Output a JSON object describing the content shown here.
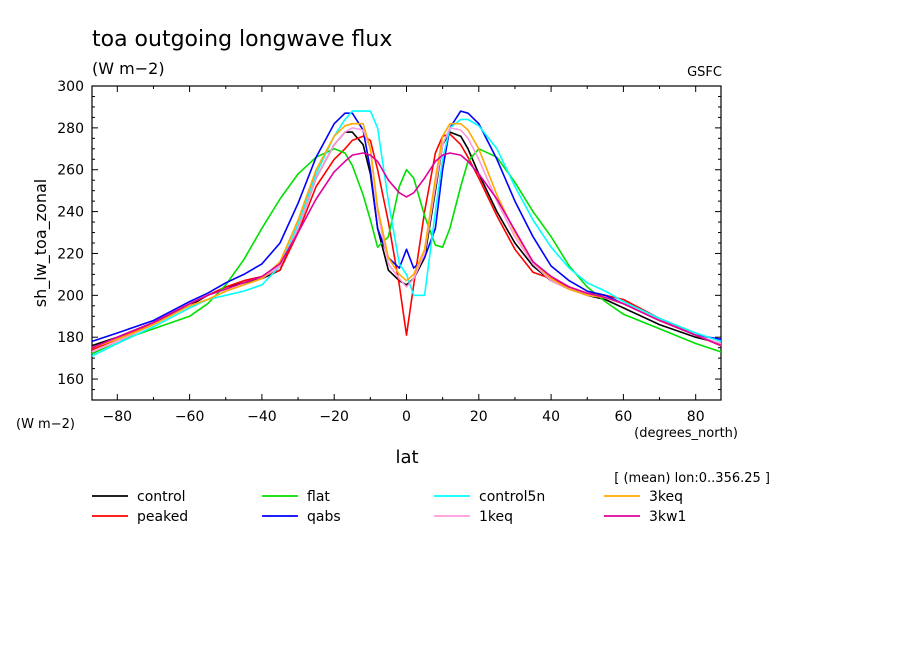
{
  "chart_data": {
    "type": "line",
    "title": "toa outgoing longwave flux",
    "units": "(W m−2)",
    "source": "GSFC",
    "ylabel": "sh_lw_toa_zonal",
    "yunits": "(W m−2)",
    "xlabel": "lat",
    "xunits": "(degrees_north)",
    "annotation": "[ (mean) lon:0..356.25 ]",
    "xlim": [
      -87,
      87
    ],
    "ylim": [
      150,
      300
    ],
    "xticks": [
      -80,
      -60,
      -40,
      -20,
      0,
      20,
      40,
      60,
      80
    ],
    "yticks": [
      160,
      180,
      200,
      220,
      240,
      260,
      280,
      300
    ],
    "x": [
      -87,
      -80,
      -70,
      -60,
      -55,
      -50,
      -45,
      -40,
      -35,
      -30,
      -25,
      -20,
      -17,
      -15,
      -12,
      -10,
      -8,
      -5,
      -2,
      0,
      2,
      5,
      8,
      10,
      12,
      15,
      17,
      20,
      25,
      30,
      35,
      40,
      45,
      50,
      55,
      60,
      70,
      80,
      87
    ],
    "series": [
      {
        "name": "control",
        "color": "#000000",
        "values": [
          176,
          180,
          187,
          195,
          200,
          204,
          206,
          208,
          212,
          232,
          256,
          272,
          278,
          278,
          272,
          258,
          232,
          212,
          207,
          205,
          208,
          218,
          250,
          272,
          278,
          276,
          270,
          258,
          240,
          225,
          214,
          207,
          203,
          200,
          198,
          194,
          186,
          180,
          177
        ]
      },
      {
        "name": "peaked",
        "color": "#ff0000",
        "values": [
          174,
          179,
          187,
          196,
          200,
          204,
          207,
          209,
          212,
          230,
          252,
          265,
          270,
          274,
          276,
          274,
          260,
          235,
          205,
          181,
          205,
          240,
          268,
          276,
          277,
          272,
          266,
          256,
          238,
          222,
          211,
          208,
          204,
          201,
          200,
          198,
          189,
          181,
          176
        ]
      },
      {
        "name": "flat",
        "color": "#00e000",
        "values": [
          172,
          178,
          184,
          190,
          196,
          205,
          217,
          232,
          246,
          258,
          266,
          270,
          268,
          262,
          248,
          236,
          223,
          228,
          252,
          260,
          256,
          238,
          224,
          223,
          232,
          252,
          264,
          270,
          266,
          254,
          240,
          228,
          214,
          204,
          197,
          191,
          184,
          177,
          173
        ]
      },
      {
        "name": "qabs",
        "color": "#0000ff",
        "values": [
          178,
          182,
          188,
          197,
          201,
          206,
          210,
          215,
          225,
          244,
          266,
          282,
          287,
          287,
          279,
          260,
          232,
          218,
          213,
          222,
          213,
          218,
          232,
          260,
          280,
          288,
          287,
          282,
          265,
          245,
          228,
          214,
          207,
          202,
          200,
          196,
          188,
          181,
          179
        ]
      },
      {
        "name": "control5n",
        "color": "#00ffff",
        "values": [
          171,
          177,
          185,
          194,
          198,
          200,
          202,
          205,
          214,
          234,
          258,
          276,
          284,
          288,
          288,
          288,
          280,
          245,
          215,
          210,
          200,
          200,
          240,
          265,
          280,
          284,
          284,
          281,
          270,
          252,
          236,
          223,
          213,
          206,
          202,
          197,
          189,
          182,
          178
        ]
      },
      {
        "name": "1keq",
        "color": "#ff99dd",
        "values": [
          173,
          178,
          186,
          195,
          198,
          202,
          205,
          208,
          214,
          232,
          256,
          272,
          278,
          280,
          279,
          270,
          240,
          215,
          208,
          204,
          208,
          220,
          252,
          272,
          280,
          279,
          275,
          265,
          245,
          228,
          215,
          207,
          203,
          200,
          199,
          196,
          188,
          181,
          177
        ]
      },
      {
        "name": "3keq",
        "color": "#ffaa00",
        "values": [
          175,
          179,
          186,
          195,
          198,
          202,
          205,
          208,
          216,
          236,
          260,
          276,
          281,
          282,
          282,
          270,
          242,
          218,
          210,
          207,
          210,
          222,
          256,
          276,
          282,
          282,
          279,
          270,
          248,
          230,
          216,
          208,
          203,
          200,
          199,
          196,
          188,
          181,
          176
        ]
      },
      {
        "name": "3kw1",
        "color": "#e000a0",
        "values": [
          175,
          180,
          187,
          196,
          200,
          203,
          206,
          209,
          215,
          230,
          246,
          259,
          264,
          267,
          268,
          267,
          264,
          255,
          249,
          247,
          249,
          256,
          264,
          267,
          268,
          267,
          264,
          258,
          246,
          231,
          216,
          209,
          204,
          201,
          199,
          196,
          188,
          181,
          176
        ]
      }
    ]
  }
}
